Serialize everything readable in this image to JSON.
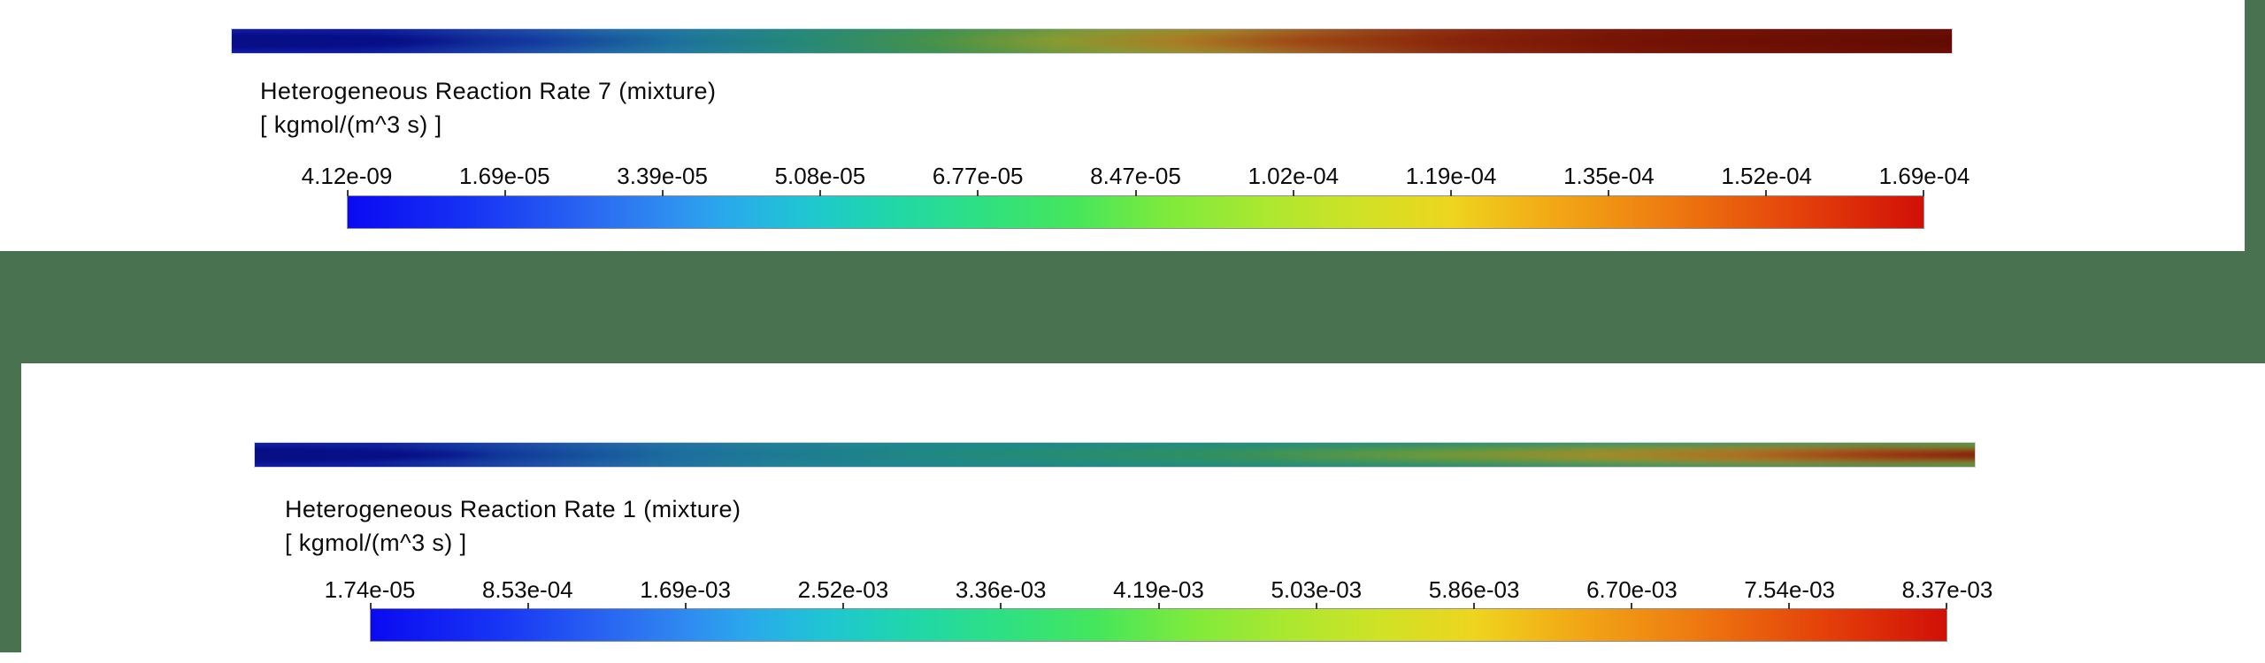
{
  "desktop": {
    "background_color": "#497350"
  },
  "colormap": {
    "stops": [
      "#0a0af2 0%",
      "#1734f4 8%",
      "#2b6cf2 16%",
      "#2f8af0 20%",
      "#2aa9ec 24%",
      "#1fc6d2 29%",
      "#1fd6ac 34%",
      "#2ee084 40%",
      "#44e65c 46%",
      "#7eea3c 52%",
      "#aae830 58%",
      "#cfe226 64%",
      "#eed51e 70%",
      "#f2ab16 76%",
      "#ee7a10 84%",
      "#e4420a 92%",
      "#d11007 100%"
    ]
  },
  "windows": [
    {
      "title": "Heterogeneous Reaction Rate 7 (mixture)",
      "units": "[ kgmol/(m^3 s) ]",
      "ticks": [
        "4.12e-09",
        "1.69e-05",
        "3.39e-05",
        "5.08e-05",
        "6.77e-05",
        "8.47e-05",
        "1.02e-04",
        "1.19e-04",
        "1.35e-04",
        "1.52e-04",
        "1.69e-04"
      ],
      "band": {
        "edge_stops": [
          "#1824aa 0%",
          "#111da0 7%",
          "#1e44a8 15%",
          "#2570aa 22%",
          "#24839a 29%",
          "#2f8d6c 36%",
          "#519649 44%",
          "#859b3a 51%",
          "#a08433 58%",
          "#97491e 66%",
          "#842811 74%",
          "#761505 85%",
          "#6e1004 100%"
        ],
        "mid_stops": [
          "#0d149c 0%",
          "#0e1d9c 10%",
          "#1c4aa4 18%",
          "#1f78a0 26%",
          "#27897c 33%",
          "#3f9153 41%",
          "#799a3a 48%",
          "#a08a2c 55%",
          "#a25c1e 62%",
          "#8c2c0e 70%",
          "#781505 80%",
          "#670e03 100%"
        ],
        "core_stops": [
          "#081088 0%",
          "#070e80 8%",
          "#12379e 18%",
          "#1d6f9a 26%",
          "#238878 33%",
          "#4a9245 41%",
          "#8c9a30 48%",
          "#ab7a22 55%",
          "#9c4414 62%",
          "#842008 72%",
          "#731205 82%",
          "#5f0b02 100%"
        ],
        "wedge_color": "#070e86"
      }
    },
    {
      "title": "Heterogeneous Reaction Rate 1 (mixture)",
      "units": "[ kgmol/(m^3 s) ]",
      "ticks": [
        "1.74e-05",
        "8.53e-04",
        "1.69e-03",
        "2.52e-03",
        "3.36e-03",
        "4.19e-03",
        "5.03e-03",
        "5.86e-03",
        "6.70e-03",
        "7.54e-03",
        "8.37e-03"
      ],
      "band": {
        "edge_stops": [
          "#1826ac 0%",
          "#111ca2 7%",
          "#1f48a8 15%",
          "#2671aa 23%",
          "#22839a 31%",
          "#1f8a8d 42%",
          "#1f8d87 55%",
          "#229083 68%",
          "#2b937a 80%",
          "#37945f 90%",
          "#44934e 100%"
        ],
        "mid_stops": [
          "#0c139a 0%",
          "#13339e 10%",
          "#2060a6 20%",
          "#1f7f97 30%",
          "#1f8b84 45%",
          "#2b8f6e 58%",
          "#4f9449 70%",
          "#7f9b35 80%",
          "#a08f2e 88%",
          "#97862c 95%",
          "#8a9a30 100%"
        ],
        "core_stops": [
          "#081088 0%",
          "#0c2596 12%",
          "#1c6f9e 25%",
          "#218a7e 40%",
          "#2f8f5d 55%",
          "#6f9a3a 68%",
          "#a58a28 78%",
          "#b06a20 86%",
          "#a03410 93%",
          "#871105 100%"
        ],
        "wedge_color": "#070e86"
      }
    }
  ],
  "chart_data": [
    {
      "type": "heatmap",
      "title": "Heterogeneous Reaction Rate 7 (mixture)",
      "units_label": "[ kgmol/(m^3 s) ]",
      "colorbar_orientation": "horizontal",
      "legend_position": "bottom",
      "min": 4.12e-09,
      "max": 0.000169,
      "colorbar_ticks": [
        4.12e-09,
        1.69e-05,
        3.39e-05,
        5.08e-05,
        6.77e-05,
        8.47e-05,
        0.000102,
        0.000119,
        0.000135,
        0.000152,
        0.000169
      ],
      "colorbar_tick_labels": [
        "4.12e-09",
        "1.69e-05",
        "3.39e-05",
        "5.08e-05",
        "6.77e-05",
        "8.47e-05",
        "1.02e-04",
        "1.19e-04",
        "1.35e-04",
        "1.52e-04",
        "1.69e-04"
      ],
      "colormap": "rainbow blue-to-red",
      "field_summary": "thin horizontal channel contour: low value (dark blue) at left inlet, rising through teal, green and orange to maximum (dark red) along the right half"
    },
    {
      "type": "heatmap",
      "title": "Heterogeneous Reaction Rate 1 (mixture)",
      "units_label": "[ kgmol/(m^3 s) ]",
      "colorbar_orientation": "horizontal",
      "legend_position": "bottom",
      "min": 1.74e-05,
      "max": 0.00837,
      "colorbar_ticks": [
        1.74e-05,
        0.000853,
        0.00169,
        0.00252,
        0.00336,
        0.00419,
        0.00503,
        0.00586,
        0.0067,
        0.00754,
        0.00837
      ],
      "colorbar_tick_labels": [
        "1.74e-05",
        "8.53e-04",
        "1.69e-03",
        "2.52e-03",
        "3.36e-03",
        "4.19e-03",
        "5.03e-03",
        "5.86e-03",
        "6.70e-03",
        "7.54e-03",
        "8.37e-03"
      ],
      "colormap": "rainbow blue-to-red",
      "field_summary": "thin horizontal channel contour: dark blue inlet wedge at left, mostly teal along the length, centerline streak turning green, orange then dark red near the right outlet"
    }
  ]
}
